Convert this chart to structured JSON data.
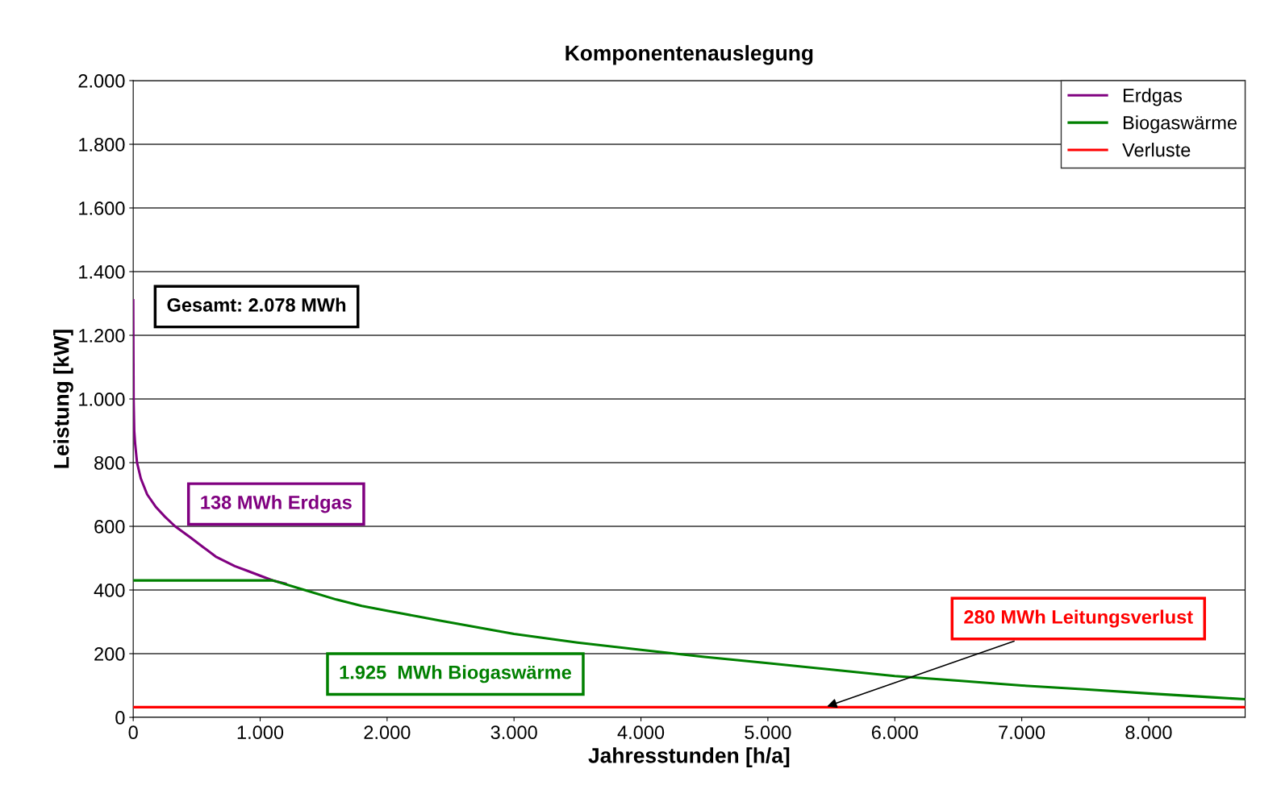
{
  "chart_data": {
    "type": "line",
    "title": "Komponentenauslegung",
    "xlabel": "Jahresstunden [h/a]",
    "ylabel": "Leistung [kW]",
    "xlim": [
      0,
      8760
    ],
    "xticks": [
      {
        "value": 0,
        "label": "0"
      },
      {
        "value": 1000,
        "label": "1.000"
      },
      {
        "value": 2000,
        "label": "2.000"
      },
      {
        "value": 3000,
        "label": "3.000"
      },
      {
        "value": 4000,
        "label": "4.000"
      },
      {
        "value": 5000,
        "label": "5.000"
      },
      {
        "value": 6000,
        "label": "6.000"
      },
      {
        "value": 7000,
        "label": "7.000"
      },
      {
        "value": 8000,
        "label": "8.000"
      }
    ],
    "ylim": [
      0,
      2000
    ],
    "yticks": [
      {
        "value": 0,
        "label": "0"
      },
      {
        "value": 200,
        "label": "200"
      },
      {
        "value": 400,
        "label": "400"
      },
      {
        "value": 600,
        "label": "600"
      },
      {
        "value": 800,
        "label": "800"
      },
      {
        "value": 1000,
        "label": "1.000"
      },
      {
        "value": 1200,
        "label": "1.200"
      },
      {
        "value": 1400,
        "label": "1.400"
      },
      {
        "value": 1600,
        "label": "1.600"
      },
      {
        "value": 1800,
        "label": "1.800"
      },
      {
        "value": 2000,
        "label": "2.000"
      }
    ],
    "grid": "y",
    "legend": "top right",
    "series": [
      {
        "name": "Erdgas",
        "color": "#800080",
        "x": [
          0,
          1,
          3,
          8,
          15,
          30,
          60,
          110,
          180,
          250,
          330,
          450,
          550,
          650,
          800,
          900,
          1000,
          1100,
          1200
        ],
        "values": [
          1310,
          1200,
          1000,
          900,
          860,
          800,
          750,
          700,
          660,
          630,
          600,
          565,
          535,
          505,
          475,
          460,
          445,
          430,
          420
        ]
      },
      {
        "name": "Biogaswärme",
        "color": "#008000",
        "x": [
          0,
          1100,
          1350,
          1600,
          1800,
          2000,
          2400,
          3000,
          3500,
          4000,
          4500,
          5000,
          5500,
          6000,
          6500,
          7000,
          7500,
          8000,
          8500,
          8760
        ],
        "values": [
          430,
          430,
          400,
          370,
          350,
          335,
          305,
          262,
          235,
          212,
          190,
          170,
          150,
          130,
          115,
          100,
          88,
          75,
          63,
          57
        ]
      },
      {
        "name": "Verluste",
        "color": "#ff0000",
        "x": [
          0,
          8760
        ],
        "values": [
          32,
          32
        ]
      }
    ],
    "annotations": [
      "Gesamt: 2.078 MWh",
      "138 MWh Erdgas",
      "1.925  MWh Biogaswärme",
      {
        "text": "280 MWh Leitungsverlust",
        "x": 5450,
        "y": 32
      }
    ]
  }
}
